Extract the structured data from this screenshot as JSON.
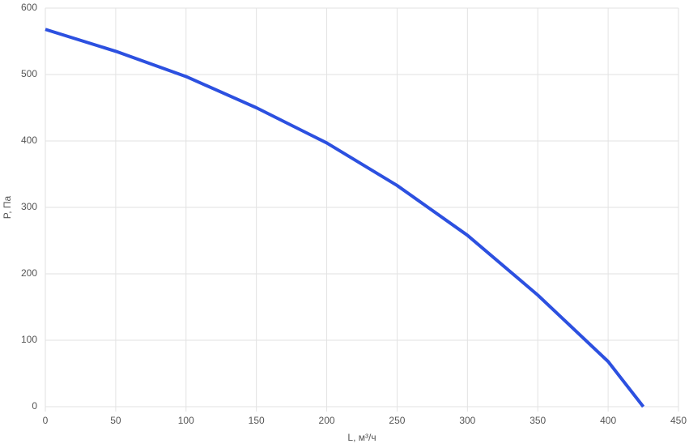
{
  "chart_data": {
    "type": "line",
    "x_label": "L, м³/ч",
    "y_label": "P, Па",
    "x": [
      0,
      50,
      100,
      150,
      200,
      250,
      300,
      350,
      400,
      425
    ],
    "series": [
      {
        "name": "P",
        "color": "#2c50e0",
        "values": [
          568,
          535,
          497,
          450,
          397,
          333,
          258,
          168,
          68,
          0
        ]
      }
    ],
    "xlim": [
      0,
      450
    ],
    "xticks": [
      0,
      50,
      100,
      150,
      200,
      250,
      300,
      350,
      400,
      450
    ],
    "ylim": [
      0,
      600
    ],
    "yticks": [
      0,
      100,
      200,
      300,
      400,
      500,
      600
    ],
    "grid": true
  }
}
